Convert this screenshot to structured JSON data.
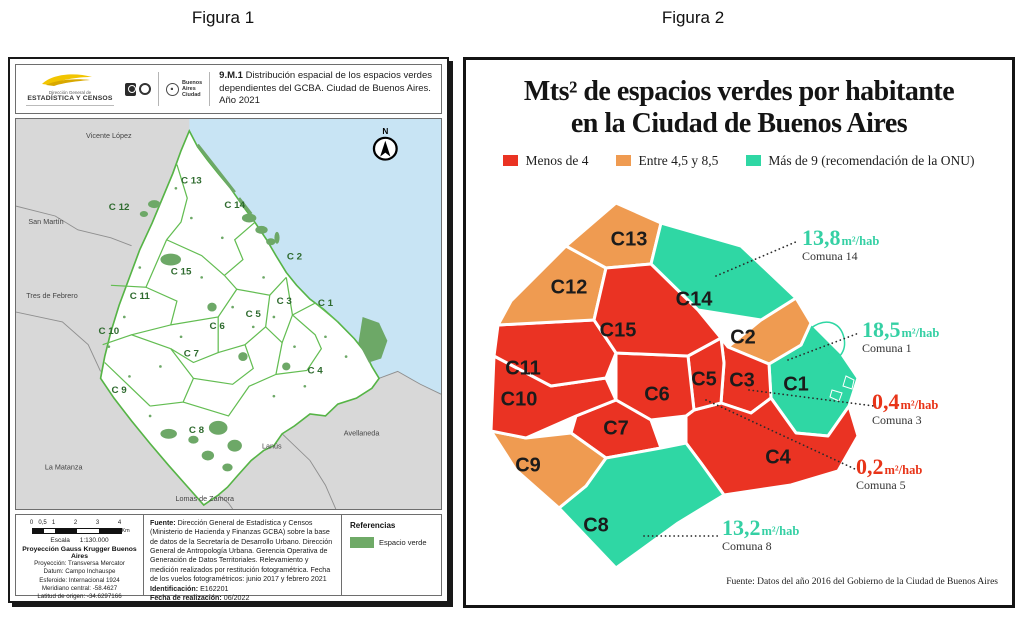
{
  "page": {
    "figura1_label": "Figura 1",
    "figura2_label": "Figura 2"
  },
  "figura1": {
    "header": {
      "logo_org_line1": "Dirección General de",
      "logo_org_line2": "ESTADÍSTICA Y CENSOS",
      "logo_ba_line1": "Buenos",
      "logo_ba_line2": "Aires",
      "logo_ba_line3": "Ciudad",
      "title_code": "9.M.1",
      "title_text": "Distribución espacial de los espacios verdes dependientes del GCBA. Ciudad de Buenos Aires. Año 2021"
    },
    "map": {
      "compass_label": "N",
      "comuna_labels": [
        "C 1",
        "C 2",
        "C 3",
        "C 4",
        "C 5",
        "C 6",
        "C 7",
        "C 8",
        "C 9",
        "C 10",
        "C 11",
        "C 12",
        "C 13",
        "C 14",
        "C 15"
      ],
      "neighbors": [
        "Vicente López",
        "San Martín",
        "Tres de Febrero",
        "La Matanza",
        "Lomas de Zamora",
        "Lanús",
        "Avellaneda"
      ],
      "green_color": "#6da867",
      "water_color": "#c8e4f4"
    },
    "footer": {
      "scale_ticks": [
        "0",
        "0,5",
        "1",
        "2",
        "3",
        "4"
      ],
      "scale_unit": "Km",
      "escala_label": "Escala",
      "escala_value": "1:130.000",
      "projection_title": "Proyección Gauss Krugger Buenos Aires",
      "projection_lines": [
        "Proyección: Transversa Mercator",
        "Datum: Campo Inchauspe",
        "Esferoide: Internacional 1924",
        "Meridiano central: -58.4627",
        "Latitud de origen: -34.6297166"
      ],
      "fuente_label": "Fuente:",
      "fuente_text": "Dirección General de Estadística y Censos (Ministerio de Hacienda y Finanzas GCBA) sobre la base de datos de la Secretaría de Desarrollo Urbano. Dirección General de Antropología Urbana. Gerencia Operativa de Generación de Datos Territoriales. Relevamiento y medición realizados por restitución fotogramétrica. Fecha de los vuelos fotogramétricos: junio 2017 y febrero 2021",
      "identificacion_label": "Identificación:",
      "identificacion_value": "E162201",
      "fecha_label": "Fecha de realización:",
      "fecha_value": "06/2022",
      "referencias_title": "Referencias",
      "referencias_item": "Espacio verde"
    }
  },
  "figura2": {
    "title_line1": "Mts² de espacios verdes por habitante",
    "title_line2": "en la Ciudad de Buenos Aires",
    "legend": [
      {
        "label": "Menos de 4",
        "color": "#ea3323"
      },
      {
        "label": "Entre 4,5 y 8,5",
        "color": "#ef9b51"
      },
      {
        "label": "Más de 9 (recomendación de la ONU)",
        "color": "#2fd7a4"
      }
    ],
    "source": "Fuente: Datos del año 2016 del Gobierno de la Ciudad de Buenos Aires",
    "chart_data": {
      "type": "choropleth-map",
      "title": "Mts² de espacios verdes por habitante en la Ciudad de Buenos Aires",
      "unit": "m²/hab",
      "categories": [
        {
          "label": "Menos de 4",
          "color": "#ea3323"
        },
        {
          "label": "Entre 4,5 y 8,5",
          "color": "#ef9b51"
        },
        {
          "label": "Más de 9 (recomendación de la ONU)",
          "color": "#2fd7a4"
        }
      ],
      "regions": [
        {
          "id": "C1",
          "category": "Más de 9 (recomendación de la ONU)",
          "value_m2_hab": 18.5
        },
        {
          "id": "C2",
          "category": "Entre 4,5 y 8,5"
        },
        {
          "id": "C3",
          "category": "Menos de 4",
          "value_m2_hab": 0.4
        },
        {
          "id": "C4",
          "category": "Menos de 4"
        },
        {
          "id": "C5",
          "category": "Menos de 4",
          "value_m2_hab": 0.2
        },
        {
          "id": "C6",
          "category": "Menos de 4"
        },
        {
          "id": "C7",
          "category": "Menos de 4"
        },
        {
          "id": "C8",
          "category": "Más de 9 (recomendación de la ONU)",
          "value_m2_hab": 13.2
        },
        {
          "id": "C9",
          "category": "Entre 4,5 y 8,5"
        },
        {
          "id": "C10",
          "category": "Menos de 4"
        },
        {
          "id": "C11",
          "category": "Menos de 4"
        },
        {
          "id": "C12",
          "category": "Entre 4,5 y 8,5"
        },
        {
          "id": "C13",
          "category": "Entre 4,5 y 8,5"
        },
        {
          "id": "C14",
          "category": "Más de 9 (recomendación de la ONU)",
          "value_m2_hab": 13.8
        },
        {
          "id": "C15",
          "category": "Menos de 4"
        }
      ],
      "annotations": [
        {
          "value": "13,8",
          "unit": "m²/hab",
          "comuna": "Comuna 14",
          "color": "#35d0a4"
        },
        {
          "value": "18,5",
          "unit": "m²/hab",
          "comuna": "Comuna 1",
          "color": "#35d0a4"
        },
        {
          "value": "0,4",
          "unit": "m²/hab",
          "comuna": "Comuna 3",
          "color": "#e83418"
        },
        {
          "value": "0,2",
          "unit": "m²/hab",
          "comuna": "Comuna 5",
          "color": "#e83418"
        },
        {
          "value": "13,2",
          "unit": "m²/hab",
          "comuna": "Comuna 8",
          "color": "#35d0a4"
        }
      ]
    }
  }
}
